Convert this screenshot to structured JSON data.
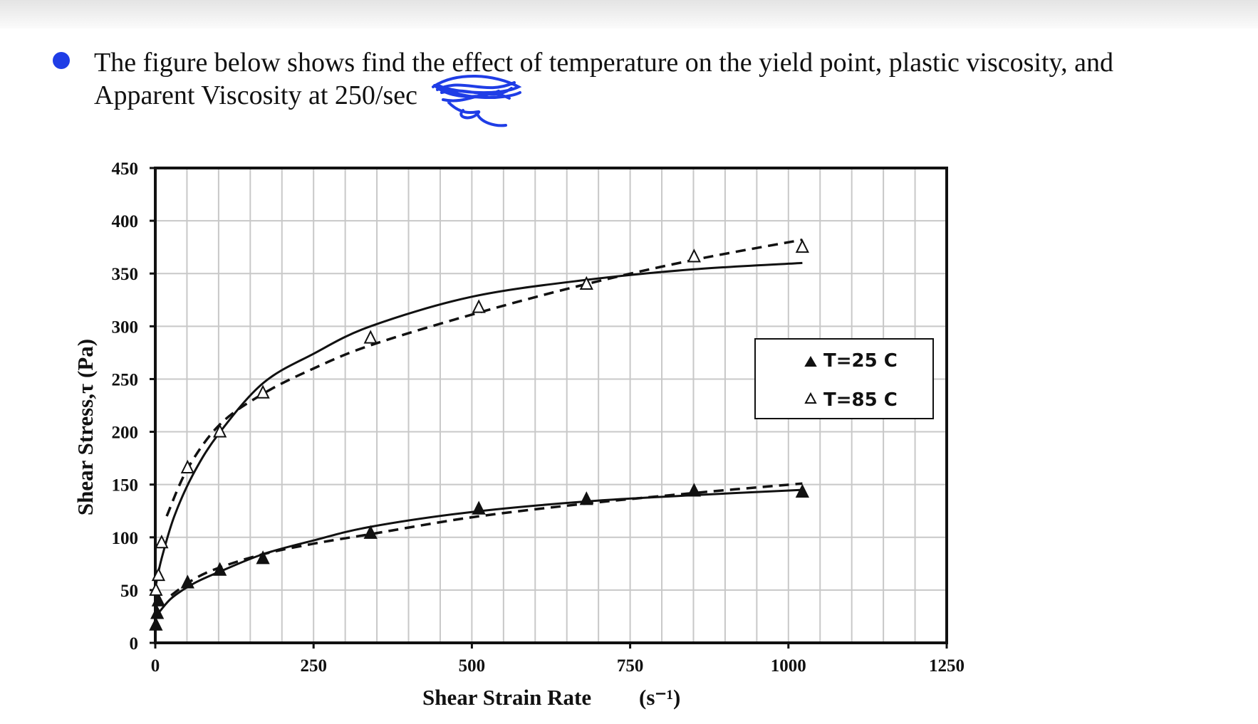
{
  "question": {
    "line1": "The figure below shows find the effect of temperature on the yield point, plastic viscosity, and",
    "line2": "Apparent Viscosity at 250/sec",
    "bullet_color": "#1f3de6",
    "scribble_color": "#1f3de6"
  },
  "chart_data": {
    "type": "scatter",
    "xlabel": "Shear Strain Rate",
    "xlabel_unit": "(s⁻¹)",
    "ylabel": "Shear Stress,τ  (Pa)",
    "xlim": [
      0,
      1250
    ],
    "ylim": [
      0,
      450
    ],
    "x_ticks": [
      0,
      250,
      500,
      750,
      1000,
      1250
    ],
    "y_ticks": [
      0,
      50,
      100,
      150,
      200,
      250,
      300,
      350,
      400,
      450
    ],
    "x_minor_step": 50,
    "y_minor_step": 50,
    "grid": true,
    "legend_position": "right",
    "series": [
      {
        "name": "T=25 C",
        "marker": "filled-triangle",
        "points": [
          {
            "x": 1,
            "y": 17
          },
          {
            "x": 3,
            "y": 28
          },
          {
            "x": 5,
            "y": 40
          },
          {
            "x": 51,
            "y": 57
          },
          {
            "x": 102,
            "y": 69
          },
          {
            "x": 170,
            "y": 80
          },
          {
            "x": 340,
            "y": 104
          },
          {
            "x": 511,
            "y": 127
          },
          {
            "x": 681,
            "y": 136
          },
          {
            "x": 851,
            "y": 144
          },
          {
            "x": 1022,
            "y": 143
          }
        ],
        "fit_solid": [
          {
            "x": 1,
            "y": 25
          },
          {
            "x": 25,
            "y": 42
          },
          {
            "x": 60,
            "y": 56
          },
          {
            "x": 100,
            "y": 67
          },
          {
            "x": 170,
            "y": 84
          },
          {
            "x": 250,
            "y": 97
          },
          {
            "x": 340,
            "y": 110
          },
          {
            "x": 500,
            "y": 124
          },
          {
            "x": 681,
            "y": 134
          },
          {
            "x": 851,
            "y": 140
          },
          {
            "x": 1022,
            "y": 145
          }
        ],
        "fit_dashed": [
          {
            "x": 25,
            "y": 45
          },
          {
            "x": 60,
            "y": 60
          },
          {
            "x": 100,
            "y": 71
          },
          {
            "x": 170,
            "y": 84
          },
          {
            "x": 250,
            "y": 94
          },
          {
            "x": 340,
            "y": 103
          },
          {
            "x": 500,
            "y": 119
          },
          {
            "x": 681,
            "y": 132
          },
          {
            "x": 851,
            "y": 142
          },
          {
            "x": 1022,
            "y": 151
          }
        ]
      },
      {
        "name": "T=85 C",
        "marker": "open-triangle",
        "points": [
          {
            "x": 1,
            "y": 50
          },
          {
            "x": 5,
            "y": 64
          },
          {
            "x": 10,
            "y": 95
          },
          {
            "x": 51,
            "y": 166
          },
          {
            "x": 102,
            "y": 200
          },
          {
            "x": 170,
            "y": 237
          },
          {
            "x": 340,
            "y": 289
          },
          {
            "x": 511,
            "y": 318
          },
          {
            "x": 681,
            "y": 340
          },
          {
            "x": 851,
            "y": 366
          },
          {
            "x": 1022,
            "y": 375
          }
        ],
        "fit_solid": [
          {
            "x": 1,
            "y": 55
          },
          {
            "x": 10,
            "y": 80
          },
          {
            "x": 30,
            "y": 120
          },
          {
            "x": 60,
            "y": 160
          },
          {
            "x": 100,
            "y": 198
          },
          {
            "x": 170,
            "y": 246
          },
          {
            "x": 250,
            "y": 274
          },
          {
            "x": 340,
            "y": 300
          },
          {
            "x": 500,
            "y": 328
          },
          {
            "x": 681,
            "y": 344
          },
          {
            "x": 851,
            "y": 354
          },
          {
            "x": 1022,
            "y": 360
          }
        ],
        "fit_dashed": [
          {
            "x": 18,
            "y": 120
          },
          {
            "x": 51,
            "y": 165
          },
          {
            "x": 102,
            "y": 207
          },
          {
            "x": 170,
            "y": 236
          },
          {
            "x": 250,
            "y": 260
          },
          {
            "x": 340,
            "y": 282
          },
          {
            "x": 511,
            "y": 313
          },
          {
            "x": 681,
            "y": 340
          },
          {
            "x": 851,
            "y": 363
          },
          {
            "x": 1022,
            "y": 382
          }
        ]
      }
    ]
  }
}
